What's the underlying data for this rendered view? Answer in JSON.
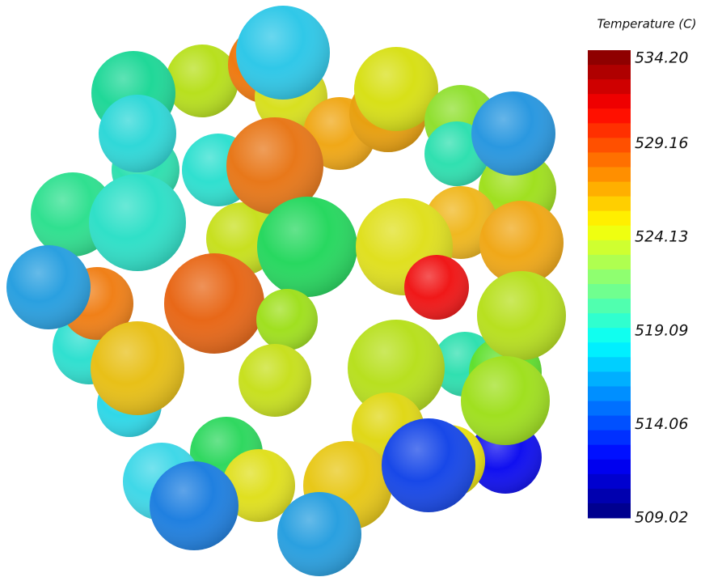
{
  "colorbar": {
    "title": "Temperature (C)",
    "range": [
      509.02,
      534.2
    ],
    "ticks": [
      {
        "value": 534.2,
        "label": "534.20"
      },
      {
        "value": 529.16,
        "label": "529.16"
      },
      {
        "value": 524.13,
        "label": "524.13"
      },
      {
        "value": 519.09,
        "label": "519.09"
      },
      {
        "value": 514.06,
        "label": "514.06"
      },
      {
        "value": 509.02,
        "label": "509.02"
      }
    ]
  }
}
